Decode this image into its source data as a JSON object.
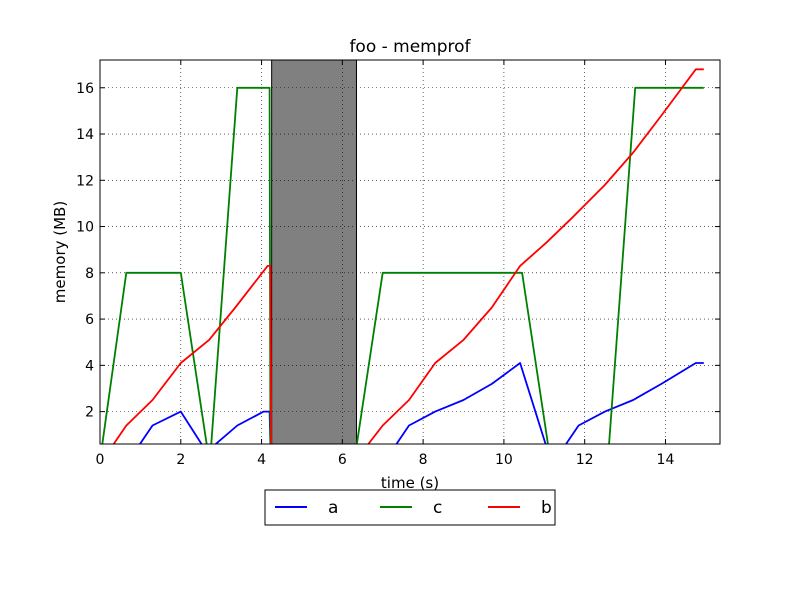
{
  "chart_data": {
    "type": "line",
    "title": "foo - memprof",
    "xlabel": "time (s)",
    "ylabel": "memory (MB)",
    "xlim": [
      0,
      15.35
    ],
    "ylim": [
      0.6,
      17.2
    ],
    "xticks": [
      0,
      2,
      4,
      6,
      8,
      10,
      12,
      14
    ],
    "yticks": [
      2,
      4,
      6,
      8,
      10,
      12,
      14,
      16
    ],
    "grid": true,
    "legend_position": "bottom-center",
    "shaded_region": {
      "x": [
        4.25,
        6.35
      ],
      "color": "#808080"
    },
    "series": [
      {
        "name": "a",
        "color": "#0000ff",
        "points": [
          [
            0.95,
            0.5
          ],
          [
            1.3,
            1.4
          ],
          [
            2.0,
            2.0
          ],
          [
            2.55,
            0.5
          ],
          [
            2.8,
            0.5
          ],
          [
            3.4,
            1.4
          ],
          [
            4.05,
            2.0
          ],
          [
            4.2,
            2.0
          ],
          [
            4.22,
            0.5
          ],
          [
            7.3,
            0.5
          ],
          [
            7.65,
            1.4
          ],
          [
            8.3,
            2.0
          ],
          [
            9.0,
            2.5
          ],
          [
            9.7,
            3.2
          ],
          [
            10.4,
            4.1
          ],
          [
            11.05,
            0.5
          ],
          [
            11.5,
            0.5
          ],
          [
            11.85,
            1.4
          ],
          [
            12.5,
            2.0
          ],
          [
            13.2,
            2.5
          ],
          [
            13.9,
            3.2
          ],
          [
            14.75,
            4.1
          ],
          [
            14.95,
            4.1
          ]
        ]
      },
      {
        "name": "c",
        "color": "#008000",
        "points": [
          [
            0.05,
            0.5
          ],
          [
            0.65,
            8.0
          ],
          [
            2.0,
            8.0
          ],
          [
            2.65,
            0.5
          ],
          [
            2.75,
            0.5
          ],
          [
            3.4,
            16.0
          ],
          [
            4.2,
            16.0
          ],
          [
            4.22,
            0.5
          ],
          [
            6.35,
            0.5
          ],
          [
            7.0,
            8.0
          ],
          [
            10.45,
            8.0
          ],
          [
            11.1,
            0.5
          ],
          [
            12.6,
            0.5
          ],
          [
            13.25,
            16.0
          ],
          [
            14.95,
            16.0
          ]
        ]
      },
      {
        "name": "b",
        "color": "#ff0000",
        "points": [
          [
            0.3,
            0.5
          ],
          [
            0.65,
            1.4
          ],
          [
            1.3,
            2.5
          ],
          [
            2.0,
            4.1
          ],
          [
            2.7,
            5.1
          ],
          [
            3.35,
            6.5
          ],
          [
            4.15,
            8.3
          ],
          [
            4.22,
            8.3
          ],
          [
            4.24,
            0.5
          ],
          [
            6.6,
            0.5
          ],
          [
            7.0,
            1.4
          ],
          [
            7.65,
            2.5
          ],
          [
            8.3,
            4.1
          ],
          [
            9.0,
            5.1
          ],
          [
            9.7,
            6.5
          ],
          [
            10.4,
            8.3
          ],
          [
            11.05,
            9.3
          ],
          [
            11.7,
            10.4
          ],
          [
            12.5,
            11.8
          ],
          [
            13.2,
            13.2
          ],
          [
            13.9,
            14.8
          ],
          [
            14.75,
            16.8
          ],
          [
            14.95,
            16.8
          ]
        ]
      }
    ]
  }
}
